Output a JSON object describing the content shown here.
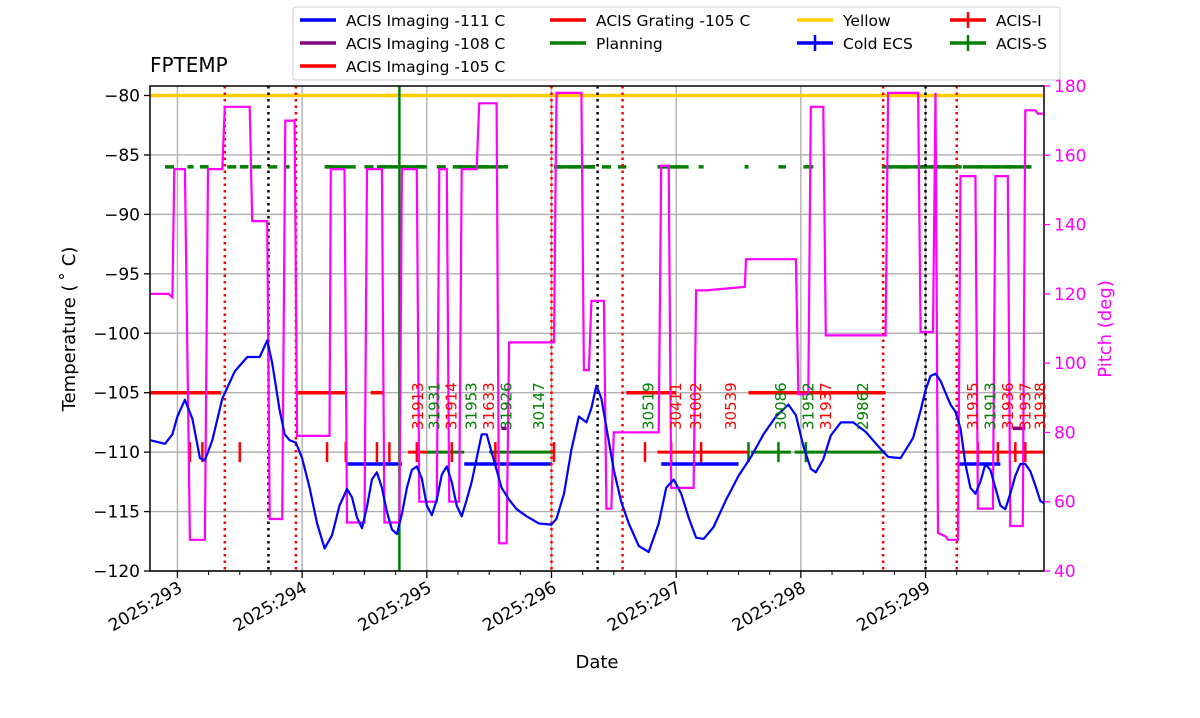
{
  "chart_data": {
    "type": "line",
    "title": "FPTEMP",
    "xlabel": "Date",
    "ylabel": "Temperature ($^\\circ$C)",
    "ylabel_display": "Temperature ( ˚ C)",
    "y2label": "Pitch (deg)",
    "xlim": [
      292.78,
      299.95
    ],
    "ylim": [
      -120,
      -79.2
    ],
    "y2lim": [
      40,
      180
    ],
    "x_ticks": [
      293,
      294,
      295,
      296,
      297,
      298,
      299
    ],
    "x_tick_labels": [
      "2025:293",
      "2025:294",
      "2025:295",
      "2025:296",
      "2025:297",
      "2025:298",
      "2025:299"
    ],
    "y_ticks": [
      -120,
      -115,
      -110,
      -105,
      -100,
      -95,
      -90,
      -85,
      -80
    ],
    "y_tick_labels": [
      "−120",
      "−115",
      "−110",
      "−105",
      "−100",
      "−95",
      "−90",
      "−85",
      "−80"
    ],
    "y2_ticks": [
      40,
      60,
      80,
      100,
      120,
      140,
      160,
      180
    ],
    "y2_tick_labels": [
      "40",
      "60",
      "80",
      "100",
      "120",
      "140",
      "160",
      "180"
    ],
    "grid": true,
    "legend": {
      "position": "top",
      "entries": [
        {
          "label": "ACIS Imaging -111 C",
          "color": "#0000ff",
          "style": "line"
        },
        {
          "label": "ACIS Imaging -108 C",
          "color": "#800080",
          "style": "line"
        },
        {
          "label": "ACIS Imaging -105 C",
          "color": "#ff0000",
          "style": "line"
        },
        {
          "label": "ACIS Grating -105 C",
          "color": "#ff0000",
          "style": "line"
        },
        {
          "label": "Planning",
          "color": "#008000",
          "style": "line"
        },
        {
          "label": "Yellow",
          "color": "#ffcc00",
          "style": "line"
        },
        {
          "label": "Cold ECS",
          "color": "#0000ff",
          "style": "cross"
        },
        {
          "label": "ACIS-I",
          "color": "#ff0000",
          "style": "cross"
        },
        {
          "label": "ACIS-S",
          "color": "#008000",
          "style": "cross"
        }
      ]
    },
    "colors": {
      "temperature": "#0000ff",
      "pitch": "#ff00ff",
      "yellow": "#ffcc00",
      "acis_i": "#ff0000",
      "acis_s": "#008000",
      "grid": "#b0b0b0",
      "black": "#000000"
    },
    "yellow_limit": -80,
    "series": [
      {
        "name": "FPTEMP",
        "axis": "left",
        "x": [
          292.78,
          292.9,
          292.96,
          293.0,
          293.06,
          293.12,
          293.18,
          293.22,
          293.28,
          293.36,
          293.46,
          293.56,
          293.66,
          293.72,
          293.76,
          293.82,
          293.86,
          293.9,
          293.95,
          294.0,
          294.06,
          294.12,
          294.18,
          294.24,
          294.3,
          294.36,
          294.4,
          294.44,
          294.48,
          294.52,
          294.56,
          294.6,
          294.64,
          294.68,
          294.72,
          294.76,
          294.8,
          294.84,
          294.88,
          294.92,
          294.96,
          295.0,
          295.04,
          295.08,
          295.12,
          295.16,
          295.2,
          295.24,
          295.28,
          295.32,
          295.36,
          295.4,
          295.44,
          295.48,
          295.52,
          295.56,
          295.6,
          295.66,
          295.72,
          295.8,
          295.9,
          296.0,
          296.04,
          296.1,
          296.16,
          296.22,
          296.28,
          296.32,
          296.36,
          296.4,
          296.45,
          296.5,
          296.56,
          296.62,
          296.7,
          296.78,
          296.86,
          296.92,
          296.98,
          297.04,
          297.1,
          297.16,
          297.22,
          297.3,
          297.4,
          297.5,
          297.6,
          297.7,
          297.8,
          297.9,
          297.96,
          298.02,
          298.08,
          298.12,
          298.18,
          298.24,
          298.32,
          298.42,
          298.52,
          298.62,
          298.7,
          298.8,
          298.9,
          298.96,
          299.0,
          299.04,
          299.08,
          299.12,
          299.16,
          299.2,
          299.24,
          299.28,
          299.32,
          299.36,
          299.4,
          299.44,
          299.48,
          299.52,
          299.56,
          299.6,
          299.64,
          299.68,
          299.72,
          299.76,
          299.8,
          299.84,
          299.88,
          299.92,
          299.95
        ],
        "y": [
          -109.0,
          -109.3,
          -108.5,
          -107.0,
          -105.6,
          -107.2,
          -110.5,
          -110.7,
          -109.0,
          -105.5,
          -103.2,
          -102.0,
          -102.0,
          -100.6,
          -102.5,
          -106.5,
          -108.5,
          -109.0,
          -109.2,
          -110.5,
          -113.0,
          -116.0,
          -118.1,
          -117.0,
          -114.5,
          -113.1,
          -113.8,
          -115.5,
          -116.4,
          -114.6,
          -112.3,
          -111.7,
          -113.0,
          -115.0,
          -116.5,
          -116.9,
          -115.2,
          -113.0,
          -111.5,
          -111.2,
          -112.2,
          -114.5,
          -115.3,
          -114.0,
          -111.9,
          -111.2,
          -112.5,
          -114.5,
          -115.4,
          -114.0,
          -112.5,
          -110.5,
          -108.5,
          -108.5,
          -110.0,
          -111.5,
          -113.0,
          -114.0,
          -114.8,
          -115.4,
          -116.0,
          -116.1,
          -115.6,
          -113.5,
          -109.8,
          -107.0,
          -107.5,
          -106.3,
          -104.4,
          -105.5,
          -108.5,
          -111.5,
          -114.2,
          -116.0,
          -117.9,
          -118.4,
          -116.0,
          -113.0,
          -112.3,
          -113.5,
          -115.5,
          -117.2,
          -117.3,
          -116.3,
          -114.0,
          -112.0,
          -110.4,
          -108.5,
          -107.0,
          -106.0,
          -106.9,
          -109.5,
          -111.4,
          -111.7,
          -110.6,
          -108.6,
          -107.5,
          -107.5,
          -108.3,
          -109.5,
          -110.4,
          -110.5,
          -108.8,
          -106.5,
          -104.8,
          -103.6,
          -103.4,
          -104.0,
          -105.0,
          -106.0,
          -106.6,
          -108.0,
          -111.0,
          -113.0,
          -113.5,
          -112.5,
          -111.0,
          -111.5,
          -113.0,
          -114.5,
          -114.8,
          -113.5,
          -112.0,
          -111.0,
          -111.0,
          -111.6,
          -112.8,
          -114.1,
          -114.3
        ]
      },
      {
        "name": "Pitch",
        "axis": "right",
        "x": [
          292.78,
          292.93,
          292.96,
          292.975,
          293.06,
          293.1,
          293.12,
          293.22,
          293.245,
          293.36,
          293.38,
          293.58,
          293.6,
          293.72,
          293.74,
          293.84,
          293.865,
          293.94,
          293.96,
          293.995,
          294.0,
          294.02,
          294.22,
          294.23,
          294.34,
          294.36,
          294.5,
          294.52,
          294.64,
          294.66,
          294.78,
          294.8,
          294.92,
          294.94,
          295.08,
          295.1,
          295.16,
          295.18,
          295.26,
          295.28,
          295.4,
          295.42,
          295.56,
          295.58,
          295.64,
          295.66,
          296.02,
          296.04,
          296.24,
          296.26,
          296.3,
          296.32,
          296.42,
          296.44,
          296.48,
          296.5,
          296.56,
          296.58,
          296.62,
          296.64,
          296.86,
          296.88,
          296.94,
          296.96,
          297.14,
          297.16,
          297.22,
          297.24,
          297.55,
          297.56,
          297.96,
          297.98,
          298.06,
          298.08,
          298.18,
          298.2,
          298.68,
          298.7,
          298.94,
          298.96,
          299.06,
          299.08,
          299.1,
          299.16,
          299.18,
          299.26,
          299.28,
          299.4,
          299.42,
          299.54,
          299.56,
          299.66,
          299.68,
          299.78,
          299.8,
          299.88,
          299.9,
          299.95
        ],
        "y": [
          120,
          120,
          119,
          156,
          156,
          49,
          49,
          49,
          156,
          156,
          174,
          174,
          141,
          141,
          55,
          55,
          170,
          170,
          79,
          79,
          79,
          79,
          79,
          156,
          156,
          54,
          54,
          156,
          156,
          54,
          54,
          156,
          156,
          60,
          60,
          156,
          156,
          60,
          60,
          156,
          156,
          175,
          175,
          48,
          48,
          106,
          106,
          178,
          178,
          98,
          98,
          118,
          118,
          58,
          58,
          80,
          80,
          80,
          80,
          80,
          80,
          157,
          157,
          64,
          64,
          121,
          121,
          121,
          122,
          130,
          130,
          91,
          91,
          174,
          174,
          108,
          108,
          178,
          178,
          109,
          109,
          178,
          51,
          50,
          49,
          49,
          154,
          154,
          58,
          58,
          154,
          154,
          53,
          53,
          173,
          173,
          172,
          172
        ]
      }
    ],
    "planning_segments": [
      [
        293.5,
        293.57
      ],
      [
        294.2,
        294.43
      ],
      [
        294.6,
        294.8
      ],
      [
        294.8,
        295.0
      ],
      [
        295.25,
        295.6
      ],
      [
        296.02,
        296.35
      ],
      [
        296.62,
        296.62
      ],
      [
        296.85,
        297.1
      ],
      [
        297.55,
        297.58
      ],
      [
        298.08,
        298.1
      ],
      [
        298.65,
        298.68
      ],
      [
        298.68,
        299.29
      ],
      [
        299.3,
        299.85
      ]
    ],
    "green_markers": [
      293.1,
      293.2,
      293.5,
      294.2,
      294.35,
      294.6,
      294.7,
      294.92,
      295.2,
      295.55,
      296.02,
      296.75,
      296.96,
      297.2,
      297.58,
      297.82,
      298.04,
      299.42,
      299.58,
      299.72,
      299.8
    ],
    "yellow_dashed": [
      [
        292.9,
        293.03
      ],
      [
        293.08,
        293.13
      ],
      [
        293.18,
        293.25
      ],
      [
        293.4,
        293.55
      ],
      [
        293.6,
        293.9
      ],
      [
        294.18,
        294.32
      ],
      [
        294.5,
        294.68
      ],
      [
        294.78,
        295.0
      ],
      [
        295.08,
        295.35
      ],
      [
        295.42,
        295.53
      ],
      [
        295.58,
        295.69
      ],
      [
        296.02,
        296.6
      ],
      [
        296.86,
        296.95
      ],
      [
        297.0,
        297.04
      ],
      [
        297.18,
        297.22
      ],
      [
        297.55,
        297.58
      ],
      [
        297.82,
        297.88
      ],
      [
        298.02,
        298.12
      ],
      [
        298.66,
        299.25
      ],
      [
        299.42,
        299.46
      ],
      [
        299.52,
        299.58
      ],
      [
        299.64,
        299.72
      ],
      [
        299.78,
        299.84
      ]
    ],
    "red_105_segments": [
      [
        292.78,
        293.35
      ],
      [
        293.95,
        294.35
      ],
      [
        294.55,
        294.65
      ],
      [
        296.6,
        297.0
      ],
      [
        297.58,
        298.68
      ]
    ],
    "red_110_segments": [
      [
        294.85,
        295.0
      ],
      [
        296.85,
        297.58
      ],
      [
        299.25,
        299.95
      ]
    ],
    "blue_111_segments": [
      [
        294.35,
        294.8
      ],
      [
        295.3,
        296.0
      ],
      [
        296.88,
        297.5
      ],
      [
        299.25,
        299.6
      ]
    ],
    "green_110_segments": [
      [
        295.0,
        295.3
      ],
      [
        295.5,
        296.02
      ],
      [
        297.6,
        297.92
      ],
      [
        297.95,
        298.12
      ],
      [
        298.12,
        298.68
      ]
    ],
    "purple_108_segments": [
      [
        295.6,
        295.64
      ],
      [
        299.7,
        299.8
      ]
    ],
    "vlines": [
      {
        "x": 293.38,
        "color": "#ff0000",
        "style": "dotted"
      },
      {
        "x": 293.73,
        "color": "#000000",
        "style": "dotted"
      },
      {
        "x": 293.95,
        "color": "#ff0000",
        "style": "dotted"
      },
      {
        "x": 294.78,
        "color": "#008000",
        "style": "solid"
      },
      {
        "x": 296.0,
        "color": "#ff0000",
        "style": "dotted"
      },
      {
        "x": 296.37,
        "color": "#000000",
        "style": "dotted"
      },
      {
        "x": 296.57,
        "color": "#ff0000",
        "style": "dotted"
      },
      {
        "x": 298.66,
        "color": "#ff0000",
        "style": "dotted"
      },
      {
        "x": 299.0,
        "color": "#000000",
        "style": "dotted"
      },
      {
        "x": 299.25,
        "color": "#ff0000",
        "style": "dotted"
      }
    ],
    "obsid_labels": [
      {
        "text": "31913",
        "x": 294.93,
        "color": "#ff0000"
      },
      {
        "text": "31931",
        "x": 295.06,
        "color": "#008000"
      },
      {
        "text": "31914",
        "x": 295.2,
        "color": "#ff0000"
      },
      {
        "text": "31953",
        "x": 295.36,
        "color": "#008000"
      },
      {
        "text": "31633",
        "x": 295.5,
        "color": "#ff0000"
      },
      {
        "text": "31926",
        "x": 295.64,
        "color": "#008000"
      },
      {
        "text": "30147",
        "x": 295.9,
        "color": "#008000"
      },
      {
        "text": "30519",
        "x": 296.78,
        "color": "#008000"
      },
      {
        "text": "30411",
        "x": 297.0,
        "color": "#ff0000"
      },
      {
        "text": "31002",
        "x": 297.16,
        "color": "#ff0000"
      },
      {
        "text": "30539",
        "x": 297.44,
        "color": "#ff0000"
      },
      {
        "text": "30086",
        "x": 297.84,
        "color": "#008000"
      },
      {
        "text": "31952",
        "x": 298.06,
        "color": "#008000"
      },
      {
        "text": "31937",
        "x": 298.2,
        "color": "#ff0000"
      },
      {
        "text": "29862",
        "x": 298.5,
        "color": "#008000"
      },
      {
        "text": "31935",
        "x": 299.38,
        "color": "#ff0000"
      },
      {
        "text": "31913",
        "x": 299.52,
        "color": "#008000"
      },
      {
        "text": "31936",
        "x": 299.66,
        "color": "#ff0000"
      },
      {
        "text": "31937",
        "x": 299.8,
        "color": "#ff0000"
      },
      {
        "text": "31938",
        "x": 299.92,
        "color": "#ff0000"
      }
    ]
  }
}
